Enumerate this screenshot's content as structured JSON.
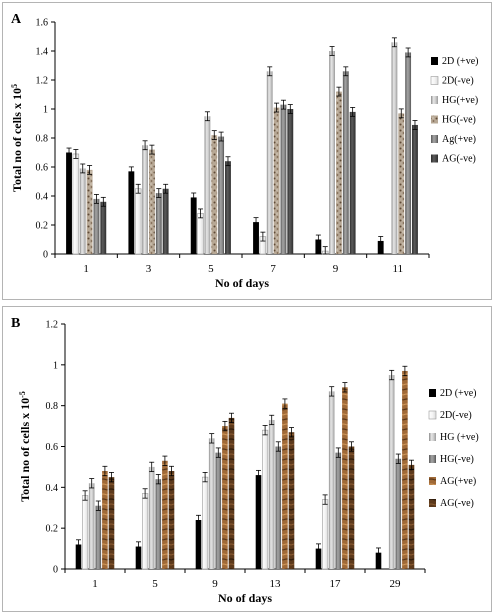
{
  "chart_data": [
    {
      "type": "bar",
      "panel_label": "A",
      "xlabel": "No of days",
      "ylabel": "Total no of cells x 10",
      "ylabel_superscript": "5",
      "ylim": [
        0,
        1.6
      ],
      "yticks": [
        "0",
        "0.2",
        "0.4",
        "0.6",
        "0.8",
        "1",
        "1.2",
        "1.4",
        "1.6"
      ],
      "categories": [
        "1",
        "3",
        "5",
        "7",
        "9",
        "11"
      ],
      "error_bars": true,
      "legend_position": "right",
      "series": [
        {
          "name": "2D (+ve)",
          "style": "black",
          "values": [
            0.7,
            0.57,
            0.39,
            0.22,
            0.1,
            0.09
          ]
        },
        {
          "name": "2D(-ve)",
          "style": "white",
          "values": [
            0.69,
            0.45,
            0.28,
            0.12,
            0.02,
            null
          ]
        },
        {
          "name": "HG(+ve)",
          "style": "light-grey",
          "values": [
            0.59,
            0.75,
            0.95,
            1.26,
            1.4,
            1.46
          ]
        },
        {
          "name": "HG(-ve)",
          "style": "brown-speckle",
          "values": [
            0.58,
            0.72,
            0.82,
            1.01,
            1.12,
            0.97
          ]
        },
        {
          "name": "Ag(+ve)",
          "style": "grey",
          "values": [
            0.38,
            0.42,
            0.81,
            1.03,
            1.26,
            1.39
          ]
        },
        {
          "name": "AG(-ve)",
          "style": "dark-grey",
          "values": [
            0.36,
            0.45,
            0.64,
            1.0,
            0.98,
            0.89
          ]
        }
      ]
    },
    {
      "type": "bar",
      "panel_label": "B",
      "xlabel": "No of days",
      "ylabel": "Total no of cells x 10",
      "ylabel_superscript": "-5",
      "ylim": [
        0,
        1.2
      ],
      "yticks": [
        "0",
        "0.2",
        "0.4",
        "0.6",
        "0.8",
        "1",
        "1.2"
      ],
      "categories": [
        "1",
        "5",
        "9",
        "13",
        "17",
        "29"
      ],
      "error_bars": true,
      "legend_position": "right",
      "series": [
        {
          "name": "2D (+ve)",
          "style": "black",
          "values": [
            0.12,
            0.11,
            0.24,
            0.46,
            0.1,
            0.08
          ]
        },
        {
          "name": "2D(-ve)",
          "style": "white",
          "values": [
            0.36,
            0.37,
            0.45,
            0.68,
            0.34,
            null
          ]
        },
        {
          "name": "HG (+ve)",
          "style": "light-grey",
          "values": [
            0.42,
            0.5,
            0.64,
            0.73,
            0.87,
            0.95
          ]
        },
        {
          "name": "HG(-ve)",
          "style": "grey",
          "values": [
            0.31,
            0.44,
            0.57,
            0.6,
            0.57,
            0.54
          ]
        },
        {
          "name": "AG(+ve)",
          "style": "brown-wood",
          "values": [
            0.48,
            0.53,
            0.7,
            0.81,
            0.89,
            0.97
          ]
        },
        {
          "name": "AG(-ve)",
          "style": "dark-wood",
          "values": [
            0.45,
            0.48,
            0.74,
            0.67,
            0.6,
            0.51
          ]
        }
      ]
    }
  ]
}
